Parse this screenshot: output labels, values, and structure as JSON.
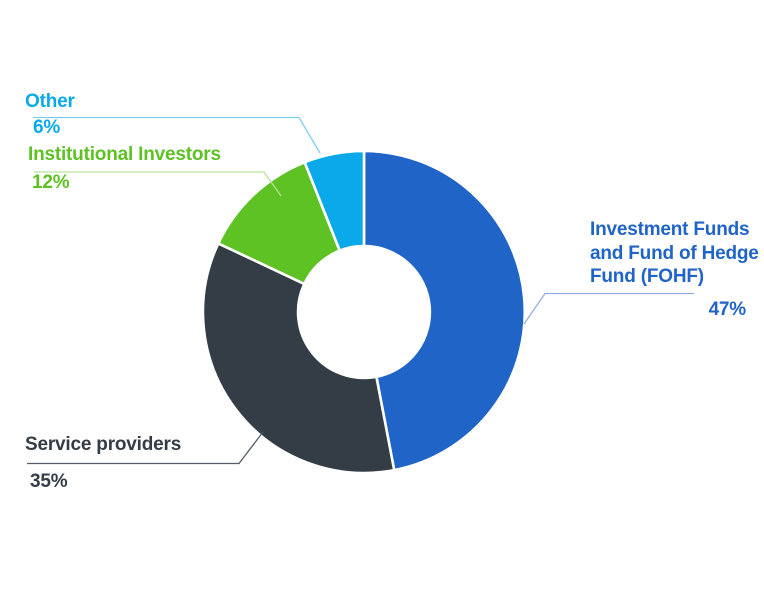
{
  "chart_data": {
    "type": "pie",
    "subtype": "donut",
    "title": "",
    "unit": "%",
    "direction": "clockwise",
    "start_angle_deg": 0,
    "inner_radius_ratio": 0.41,
    "legend_position": "callout-labels",
    "background_color": "#ffffff",
    "segment_gap_color": "#ffffff",
    "categories": [
      "Investment Funds and Fund of Hedge Fund (FOHF)",
      "Service providers",
      "Institutional Investors",
      "Other"
    ],
    "values": [
      47,
      35,
      12,
      6
    ],
    "slices": [
      {
        "key": "investment-funds-fohf",
        "label": "Investment Funds and Fund of Hedge Fund (FOHF)",
        "value": 47,
        "display": "47%",
        "color": "#2064c7",
        "leader_color": "#92aedd"
      },
      {
        "key": "service-providers",
        "label": "Service providers",
        "value": 35,
        "display": "35%",
        "color": "#343d45",
        "leader_color": "#545d65"
      },
      {
        "key": "institutional-investors",
        "label": "Institutional Investors",
        "value": 12,
        "display": "12%",
        "color": "#5ec124",
        "leader_color": "#b9e09b"
      },
      {
        "key": "other",
        "label": "Other",
        "value": 6,
        "display": "6%",
        "color": "#0ba9e9",
        "leader_color": "#7ecdf0"
      }
    ]
  }
}
